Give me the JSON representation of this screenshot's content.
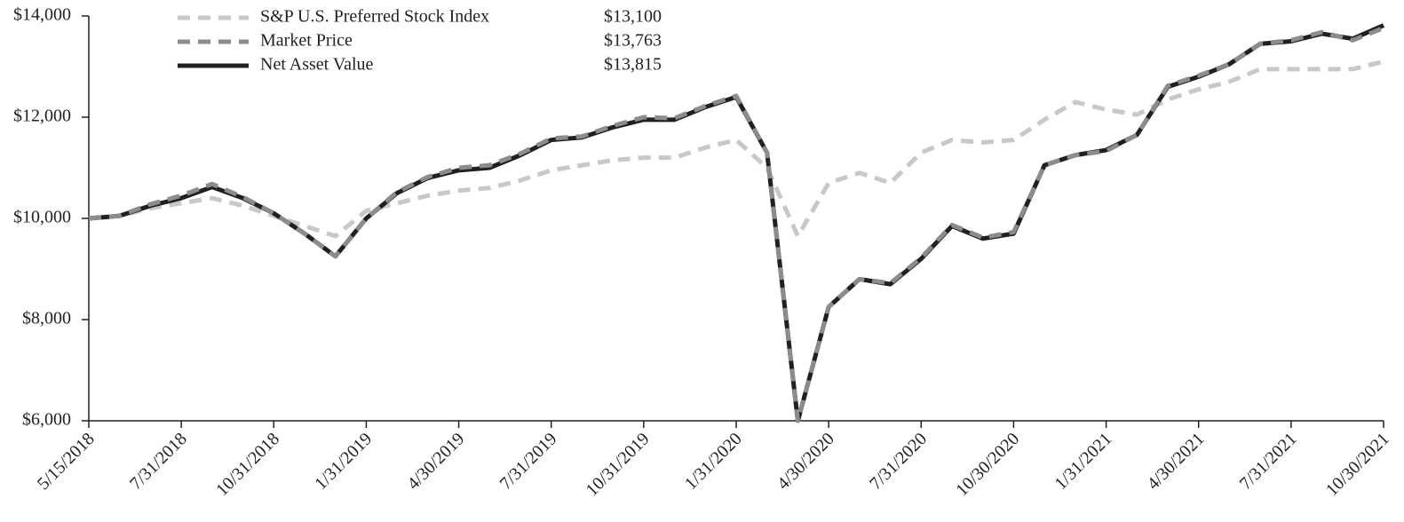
{
  "chart_data": {
    "type": "line",
    "categories": [
      "5/15/2018",
      null,
      null,
      "7/31/2018",
      null,
      null,
      "10/31/2018",
      null,
      null,
      "1/31/2019",
      null,
      null,
      "4/30/2019",
      null,
      null,
      "7/31/2019",
      null,
      null,
      "10/31/2019",
      null,
      null,
      "1/31/2020",
      null,
      null,
      "4/30/2020",
      null,
      null,
      "7/31/2020",
      null,
      null,
      "10/30/2020",
      null,
      null,
      "1/31/2021",
      null,
      null,
      "4/30/2021",
      null,
      null,
      "7/31/2021",
      null,
      null,
      "10/30/2021"
    ],
    "series": [
      {
        "name": "S&P U.S. Preferred Stock Index",
        "final_label": "$13,100",
        "color": "#c8c8c8",
        "dash": true,
        "values": [
          10000,
          10050,
          10200,
          10300,
          10400,
          10250,
          10050,
          9850,
          9650,
          10150,
          10300,
          10450,
          10550,
          10600,
          10750,
          10950,
          11050,
          11150,
          11200,
          11200,
          11400,
          11550,
          11000,
          9650,
          10700,
          10900,
          10700,
          11300,
          11550,
          11500,
          11550,
          11950,
          12300,
          12150,
          12050,
          12350,
          12550,
          12700,
          12950,
          12950,
          12950,
          12950,
          13100
        ]
      },
      {
        "name": "Market Price",
        "final_label": "$13,763",
        "color": "#8c8c8c",
        "dash": true,
        "values": [
          10000,
          10050,
          10280,
          10450,
          10680,
          10420,
          10100,
          9700,
          9250,
          10000,
          10520,
          10820,
          11000,
          11050,
          11280,
          11580,
          11620,
          11830,
          12000,
          11980,
          12220,
          12420,
          11300,
          6000,
          8250,
          8800,
          8720,
          9220,
          9870,
          9620,
          9730,
          11050,
          11250,
          11330,
          11650,
          12620,
          12820,
          13050,
          13450,
          13520,
          13680,
          13520,
          13763
        ]
      },
      {
        "name": "Net Asset Value",
        "final_label": "$13,815",
        "color": "#231f20",
        "dash": false,
        "values": [
          10000,
          10050,
          10250,
          10400,
          10620,
          10400,
          10100,
          9700,
          9250,
          10000,
          10500,
          10800,
          10950,
          11000,
          11250,
          11550,
          11600,
          11800,
          11950,
          11950,
          12200,
          12400,
          11300,
          6000,
          8250,
          8800,
          8700,
          9200,
          9850,
          9600,
          9700,
          11050,
          11250,
          11350,
          11650,
          12600,
          12800,
          13050,
          13450,
          13500,
          13650,
          13550,
          13815
        ]
      }
    ],
    "ylim": [
      6000,
      14000
    ],
    "yticks": [
      {
        "value": 6000,
        "label": "$6,000"
      },
      {
        "value": 8000,
        "label": "$8,000"
      },
      {
        "value": 10000,
        "label": "$10,000"
      },
      {
        "value": 12000,
        "label": "$12,000"
      },
      {
        "value": 14000,
        "label": "$14,000"
      }
    ],
    "grid": false,
    "legend": "top"
  }
}
